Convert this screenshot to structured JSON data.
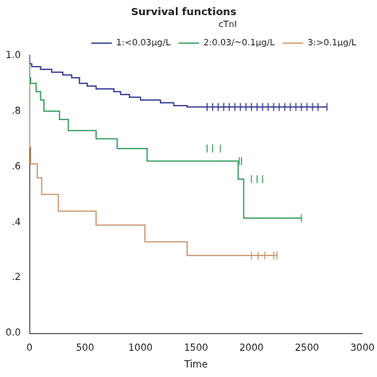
{
  "chart_data": {
    "type": "line",
    "title": "Survival functions",
    "x_label": "Time",
    "legend_title": "cTnI",
    "legend": "top-right",
    "grid": false,
    "xlim": [
      0,
      3000
    ],
    "xticks": [
      0,
      500,
      1000,
      1500,
      2000,
      2500,
      3000
    ],
    "ylim": [
      0,
      1
    ],
    "yticks": [
      {
        "value": 0,
        "label": "0.0"
      },
      {
        "value": 0.2,
        "label": ".2"
      },
      {
        "value": 0.4,
        "label": ".4"
      },
      {
        "value": 0.6,
        "label": ".6"
      },
      {
        "value": 0.8,
        "label": ".8"
      },
      {
        "value": 1,
        "label": "1.0"
      }
    ],
    "series": [
      {
        "name": "1:<0.03μg/L",
        "color": "#2b2f8f",
        "line_style": "step",
        "x": [
          0,
          20,
          100,
          200,
          300,
          380,
          450,
          520,
          600,
          760,
          820,
          900,
          1000,
          1180,
          1300,
          1420,
          1550,
          2680
        ],
        "values": [
          1.0,
          0.97,
          0.96,
          0.95,
          0.94,
          0.93,
          0.92,
          0.9,
          0.89,
          0.88,
          0.87,
          0.86,
          0.85,
          0.84,
          0.83,
          0.82,
          0.815,
          0.815
        ],
        "censored": {
          "x": [
            1600,
            1650,
            1700,
            1750,
            1800,
            1850,
            1900,
            1950,
            2000,
            2050,
            2100,
            2150,
            2200,
            2250,
            2300,
            2350,
            2400,
            2450,
            2500,
            2550,
            2600,
            2680
          ],
          "values": [
            0.815,
            0.815,
            0.815,
            0.815,
            0.815,
            0.815,
            0.815,
            0.815,
            0.815,
            0.815,
            0.815,
            0.815,
            0.815,
            0.815,
            0.815,
            0.815,
            0.815,
            0.815,
            0.815,
            0.815,
            0.815,
            0.815
          ]
        }
      },
      {
        "name": "2:0.03/~0.1μg/L",
        "color": "#2e9a57",
        "line_style": "step",
        "x": [
          0,
          10,
          60,
          100,
          130,
          270,
          350,
          600,
          790,
          1060,
          1880,
          1930,
          2270,
          2450
        ],
        "values": [
          1.0,
          0.92,
          0.9,
          0.87,
          0.84,
          0.8,
          0.77,
          0.73,
          0.7,
          0.665,
          0.62,
          0.555,
          0.415,
          0.415
        ],
        "censored": {
          "x": [
            1600,
            1650,
            1720,
            1890,
            1910,
            2000,
            2050,
            2100,
            2450
          ],
          "values": [
            0.665,
            0.665,
            0.665,
            0.62,
            0.62,
            0.555,
            0.555,
            0.555,
            0.415
          ]
        }
      },
      {
        "name": "3:>0.1μg/L",
        "color": "#c8956a",
        "line_style": "step",
        "x": [
          0,
          10,
          70,
          110,
          260,
          600,
          1040,
          1420,
          1710,
          2230
        ],
        "values": [
          1.0,
          0.67,
          0.61,
          0.56,
          0.5,
          0.44,
          0.39,
          0.33,
          0.28,
          0.28
        ],
        "censored": {
          "x": [
            2000,
            2060,
            2120,
            2200,
            2230
          ],
          "values": [
            0.28,
            0.28,
            0.28,
            0.28,
            0.28
          ]
        }
      }
    ]
  }
}
